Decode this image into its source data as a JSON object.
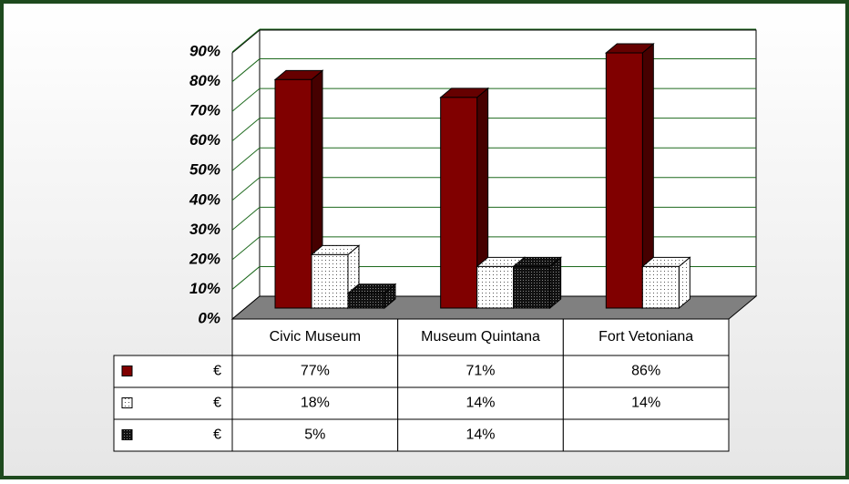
{
  "chart_data": {
    "type": "bar3d",
    "categories": [
      "Civic Museum",
      "Museum Quintana",
      "Fort Vetoniana"
    ],
    "series": [
      {
        "name": "€",
        "color": "#800000",
        "values": [
          77,
          71,
          86
        ],
        "value_labels": [
          "77%",
          "71%",
          "86%"
        ]
      },
      {
        "name": "€",
        "color": "#ffffff",
        "values": [
          18,
          14,
          14
        ],
        "value_labels": [
          "18%",
          "14%",
          "14%"
        ]
      },
      {
        "name": "€",
        "color": "#1a1a1a",
        "values": [
          5,
          14,
          null
        ],
        "value_labels": [
          "5%",
          "14%",
          null
        ]
      }
    ],
    "ylim": [
      0,
      90
    ],
    "yticks": [
      {
        "value": 0,
        "label": "0%"
      },
      {
        "value": 10,
        "label": "10%"
      },
      {
        "value": 20,
        "label": "20%"
      },
      {
        "value": 30,
        "label": "30%"
      },
      {
        "value": 40,
        "label": "40%"
      },
      {
        "value": 50,
        "label": "50%"
      },
      {
        "value": 60,
        "label": "60%"
      },
      {
        "value": 70,
        "label": "70%"
      },
      {
        "value": 80,
        "label": "80%"
      },
      {
        "value": 90,
        "label": "90%"
      }
    ],
    "grid": true
  }
}
